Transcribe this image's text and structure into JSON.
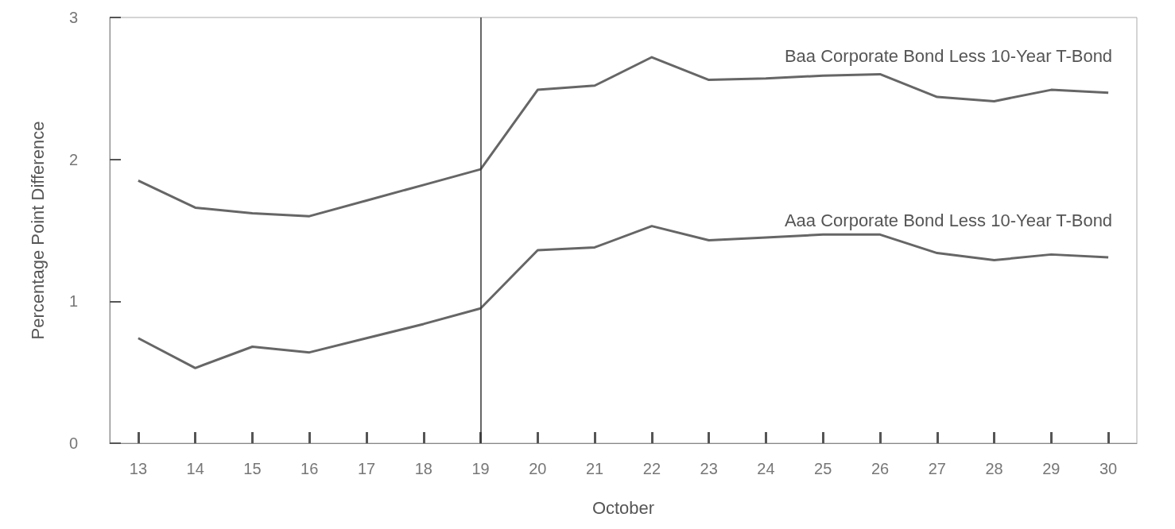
{
  "chart_data": {
    "type": "line",
    "xlabel": "October",
    "ylabel": "Percentage Point Difference",
    "categories": [
      "13",
      "14",
      "15",
      "16",
      "17",
      "18",
      "19",
      "20",
      "21",
      "22",
      "23",
      "24",
      "25",
      "26",
      "27",
      "28",
      "29",
      "30"
    ],
    "series": [
      {
        "name": "Baa Corporate Bond Less 10-Year T-Bond",
        "color": "#666666",
        "values": [
          1.85,
          1.66,
          1.62,
          1.6,
          1.71,
          1.82,
          1.93,
          2.49,
          2.52,
          2.72,
          2.56,
          2.57,
          2.59,
          2.6,
          2.44,
          2.41,
          2.49,
          2.47
        ]
      },
      {
        "name": "Aaa Corporate Bond Less 10-Year T-Bond",
        "color": "#666666",
        "values": [
          0.74,
          0.53,
          0.68,
          0.64,
          0.74,
          0.84,
          0.95,
          1.36,
          1.38,
          1.53,
          1.43,
          1.45,
          1.47,
          1.47,
          1.34,
          1.29,
          1.33,
          1.31
        ]
      }
    ],
    "ylim": [
      0,
      3
    ],
    "yticks": [
      0,
      1,
      2,
      3
    ],
    "grid": false,
    "legend": false,
    "marker": "none",
    "line_style": "solid",
    "ref_lines": [
      {
        "axis": "x",
        "value": "19",
        "color": "#333333",
        "line_style": "solid"
      }
    ]
  }
}
